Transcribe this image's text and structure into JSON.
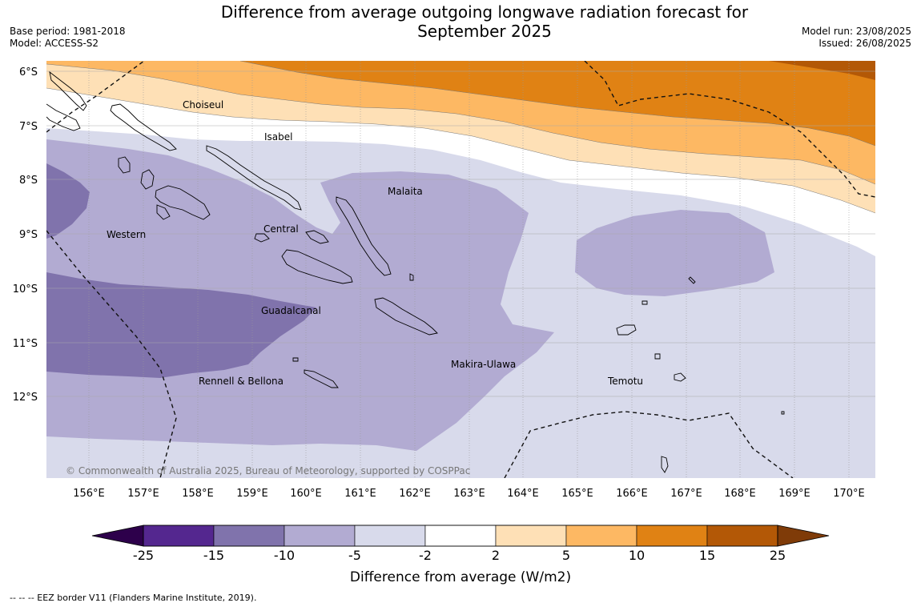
{
  "title_line1": "Difference from average outgoing longwave radiation forecast for",
  "title_line2": "September 2025",
  "left_meta": {
    "base_period": "Base period: 1981-2018",
    "model": "Model: ACCESS-S2"
  },
  "right_meta": {
    "model_run": "Model run: 23/08/2025",
    "issued": "Issued: 26/08/2025"
  },
  "map": {
    "lat_labels": [
      "6°S",
      "7°S",
      "8°S",
      "9°S",
      "10°S",
      "11°S",
      "12°S"
    ],
    "lon_labels": [
      "156°E",
      "157°E",
      "158°E",
      "159°E",
      "160°E",
      "161°E",
      "162°E",
      "163°E",
      "164°E",
      "165°E",
      "166°E",
      "167°E",
      "168°E",
      "169°E",
      "170°E"
    ],
    "regions": {
      "choiseul": "Choiseul",
      "isabel": "Isabel",
      "malaita": "Malaita",
      "western": "Western",
      "central": "Central",
      "guadalcanal": "Guadalcanal",
      "makira_ulawa": "Makira-Ulawa",
      "rennell_bellona": "Rennell & Bellona",
      "temotu": "Temotu"
    },
    "copyright": "© Commonwealth of Australia 2025, Bureau of Meteorology, supported by COSPPac"
  },
  "colorbar": {
    "tick_labels": [
      "-25",
      "-15",
      "-10",
      "-5",
      "-2",
      "2",
      "5",
      "10",
      "15",
      "25"
    ],
    "colors": [
      "#54278f",
      "#8073ac",
      "#b2abd2",
      "#d8daeb",
      "#ffffff",
      "#fee0b6",
      "#fdb863",
      "#e08214",
      "#b35806"
    ],
    "under_color": "#2d004b",
    "over_color": "#7f3b08",
    "title": "Difference from average (W/m2)"
  },
  "footer": "--  --  -- EEZ border V11 (Flanders Marine Institute, 2019)."
}
